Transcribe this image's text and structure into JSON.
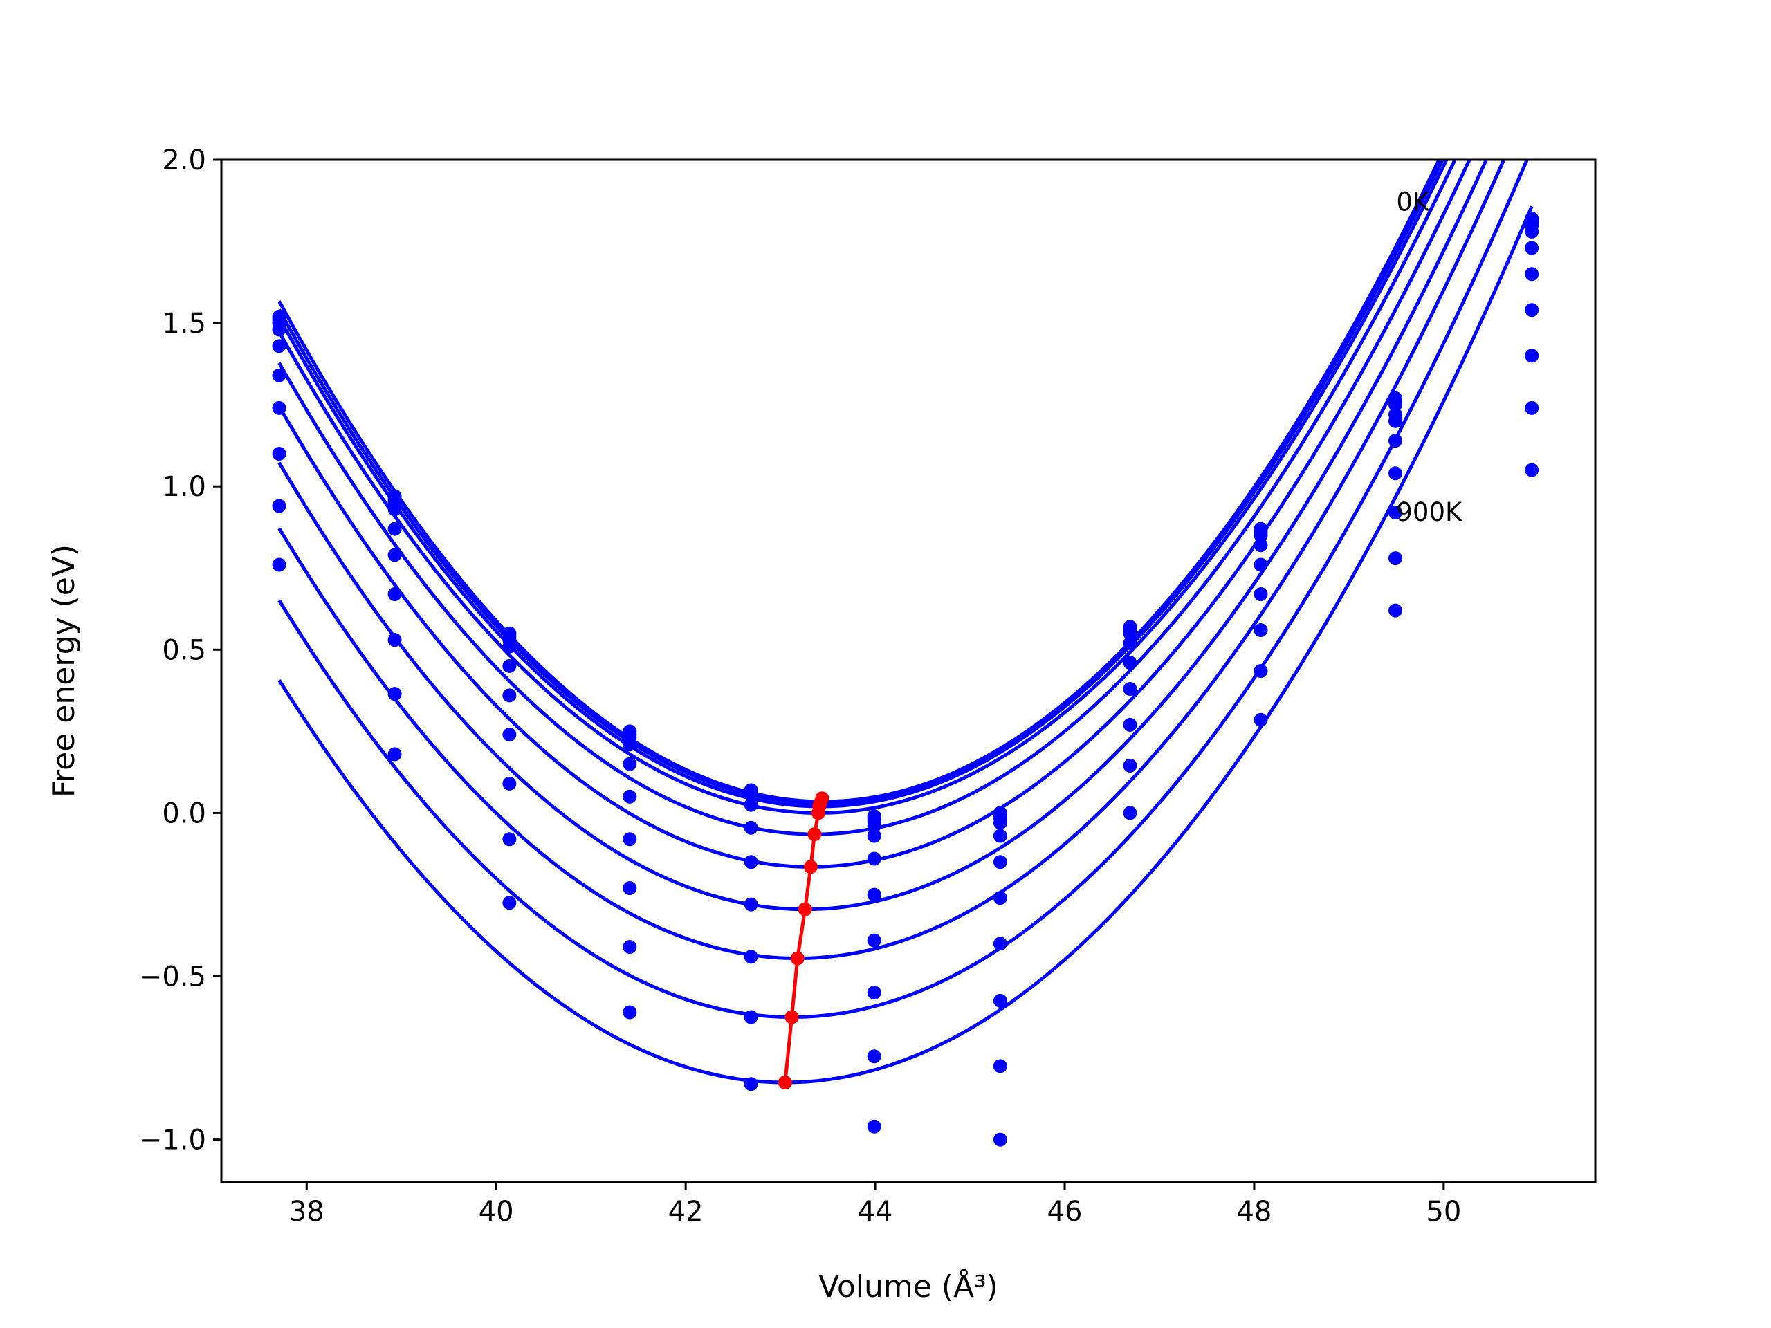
{
  "chart_data": {
    "type": "scatter",
    "title": "",
    "xlabel": "Volume (Å³)",
    "ylabel": "Free energy (eV)",
    "xlim": [
      37.1,
      51.6
    ],
    "ylim": [
      -1.13,
      2.0
    ],
    "xticks": [
      38,
      40,
      42,
      44,
      46,
      48,
      50
    ],
    "xtick_labels": [
      "38",
      "40",
      "42",
      "44",
      "46",
      "48",
      "50"
    ],
    "yticks": [
      -1.0,
      -0.5,
      0.0,
      0.5,
      1.0,
      1.5,
      2.0
    ],
    "ytick_labels": [
      "−1.0",
      "−0.5",
      "0.0",
      "0.5",
      "1.0",
      "1.5",
      "2.0"
    ],
    "grid": false,
    "annotations": [
      {
        "text": "0K",
        "x": 49.5,
        "y": 1.87
      },
      {
        "text": "900K",
        "x": 49.5,
        "y": 0.92
      }
    ],
    "volumes": [
      37.71,
      38.93,
      40.14,
      41.41,
      42.69,
      43.99,
      45.32,
      46.69,
      48.07,
      49.49,
      50.93
    ],
    "curve_color": "#0000ff",
    "minima_color": "#ff0000",
    "isotherms": [
      {
        "fit": {
          "a": 0.0465,
          "v0": 43.45,
          "e0": 0.035
        },
        "points": [
          1.52,
          0.97,
          0.55,
          0.25,
          0.07,
          -0.01,
          0.0,
          0.57,
          0.87,
          1.27,
          1.82
        ]
      },
      {
        "fit": {
          "a": 0.0462,
          "v0": 43.43,
          "e0": 0.03
        },
        "points": [
          1.51,
          0.96,
          0.54,
          0.24,
          0.065,
          -0.015,
          -0.005,
          0.56,
          0.86,
          1.26,
          1.81
        ]
      },
      {
        "fit": {
          "a": 0.0459,
          "v0": 43.42,
          "e0": 0.02
        },
        "points": [
          1.5,
          0.95,
          0.53,
          0.23,
          0.06,
          -0.025,
          -0.015,
          0.55,
          0.85,
          1.25,
          1.8
        ]
      },
      {
        "fit": {
          "a": 0.0455,
          "v0": 43.4,
          "e0": 0.0
        },
        "points": [
          1.48,
          0.93,
          0.51,
          0.21,
          0.025,
          -0.04,
          -0.03,
          0.52,
          0.82,
          1.22,
          1.78
        ]
      },
      {
        "fit": {
          "a": 0.0452,
          "v0": 43.36,
          "e0": -0.065
        },
        "points": [
          1.43,
          0.87,
          0.45,
          0.15,
          -0.045,
          -0.07,
          -0.07,
          0.46,
          0.76,
          1.2,
          1.73
        ]
      },
      {
        "fit": {
          "a": 0.0448,
          "v0": 43.32,
          "e0": -0.165
        },
        "points": [
          1.34,
          0.79,
          0.36,
          0.05,
          -0.15,
          -0.14,
          -0.15,
          0.38,
          0.67,
          1.14,
          1.65
        ]
      },
      {
        "fit": {
          "a": 0.0444,
          "v0": 43.26,
          "e0": -0.295
        },
        "points": [
          1.24,
          0.67,
          0.24,
          -0.08,
          -0.28,
          -0.25,
          -0.26,
          0.27,
          0.56,
          1.04,
          1.54
        ]
      },
      {
        "fit": {
          "a": 0.044,
          "v0": 43.18,
          "e0": -0.445
        },
        "points": [
          1.1,
          0.53,
          0.09,
          -0.23,
          -0.44,
          -0.39,
          -0.4,
          0.145,
          0.435,
          0.92,
          1.4
        ]
      },
      {
        "fit": {
          "a": 0.0436,
          "v0": 43.12,
          "e0": -0.625
        },
        "points": [
          0.94,
          0.365,
          -0.08,
          -0.41,
          -0.625,
          -0.55,
          -0.575,
          0.0,
          0.285,
          0.78,
          1.24
        ]
      },
      {
        "fit": {
          "a": 0.0432,
          "v0": 43.05,
          "e0": -0.825
        },
        "points": [
          0.76,
          0.18,
          -0.275,
          -0.61,
          -0.83,
          -0.745,
          -0.775,
          null,
          null,
          0.62,
          1.05
        ]
      }
    ],
    "minima": [
      {
        "x": 43.44,
        "y": 0.045
      },
      {
        "x": 43.42,
        "y": 0.03
      },
      {
        "x": 43.41,
        "y": 0.02
      },
      {
        "x": 43.4,
        "y": 0.0
      },
      {
        "x": 43.36,
        "y": -0.065
      },
      {
        "x": 43.32,
        "y": -0.165
      },
      {
        "x": 43.26,
        "y": -0.295
      },
      {
        "x": 43.18,
        "y": -0.445
      },
      {
        "x": 43.12,
        "y": -0.625
      },
      {
        "x": 43.05,
        "y": -0.825
      }
    ],
    "extra_points": [
      {
        "x": 43.99,
        "y": -0.96
      },
      {
        "x": 45.32,
        "y": -1.0
      }
    ]
  }
}
